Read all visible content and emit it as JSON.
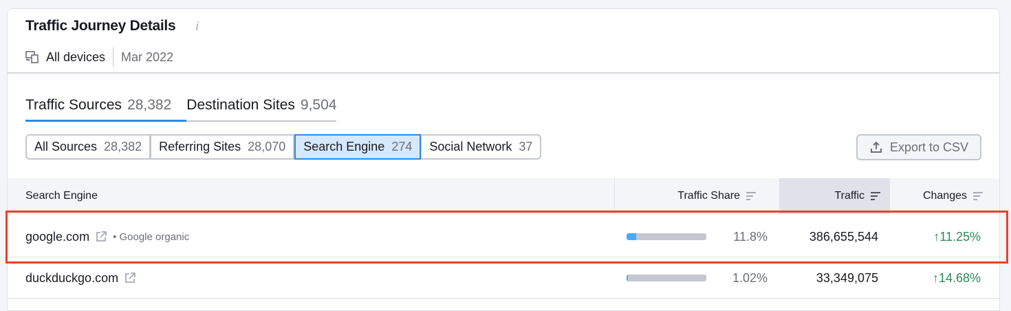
{
  "header": {
    "title": "Traffic Journey Details",
    "info_icon": "info-icon",
    "device": "All devices",
    "date": "Mar 2022"
  },
  "tabs": [
    {
      "label": "Traffic Sources",
      "count": "28,382",
      "active": true
    },
    {
      "label": "Destination Sites",
      "count": "9,504",
      "active": false
    }
  ],
  "segments": [
    {
      "label": "All Sources",
      "count": "28,382"
    },
    {
      "label": "Referring Sites",
      "count": "28,070"
    },
    {
      "label": "Search Engine",
      "count": "274",
      "active": true
    },
    {
      "label": "Social Network",
      "count": "37"
    }
  ],
  "export_label": "Export to CSV",
  "table": {
    "columns": [
      "Search Engine",
      "Traffic Share",
      "Traffic",
      "Changes"
    ],
    "rows": [
      {
        "domain": "google.com",
        "sub": "Google organic",
        "share": "11.8%",
        "share_value": 11.8,
        "traffic": "386,655,544",
        "change": "11.25%"
      },
      {
        "domain": "duckduckgo.com",
        "sub": "",
        "share": "1.02%",
        "share_value": 1.02,
        "traffic": "33,349,075",
        "change": "14.68%"
      }
    ]
  },
  "colors": {
    "accent": "#2b8ae6",
    "positive": "#2a8a5a",
    "highlight": "#e8412c",
    "bar_fill": "#4aa9ff"
  }
}
